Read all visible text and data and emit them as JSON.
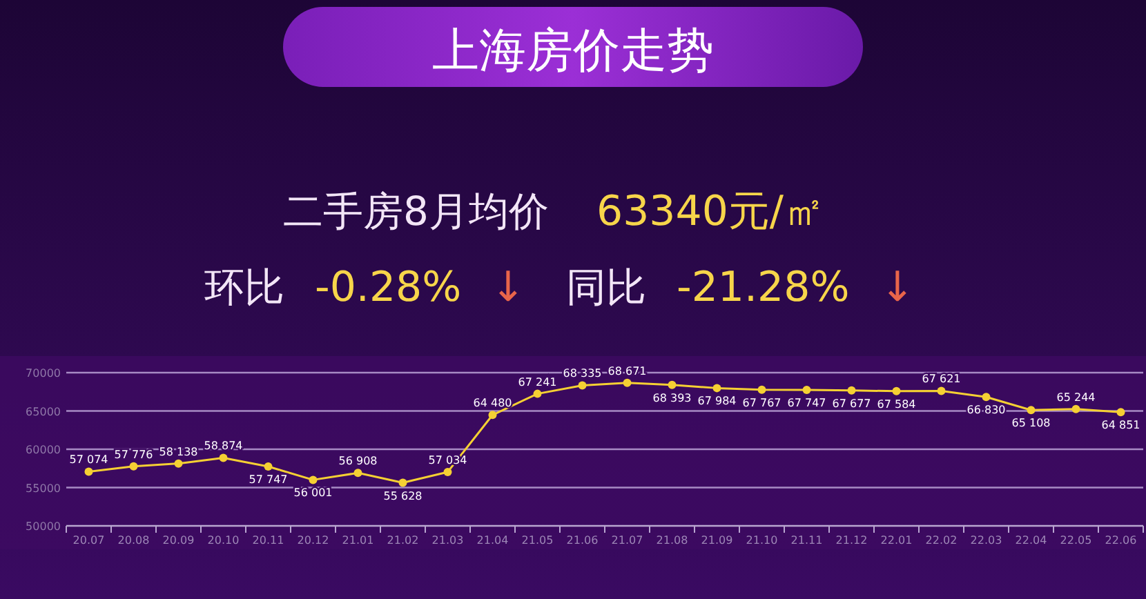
{
  "chart_data": {
    "type": "line",
    "title": "上海房价走势",
    "annotations": [
      "二手房8月均价",
      "63340元/㎡",
      "环比",
      "-0.28%",
      "↓",
      "同比",
      "-21.28%",
      "↓"
    ],
    "categories": [
      "20.07",
      "20.08",
      "20.09",
      "20.10",
      "20.11",
      "20.12",
      "21.01",
      "21.02",
      "21.03",
      "21.04",
      "21.05",
      "21.06",
      "21.07",
      "21.08",
      "21.09",
      "21.10",
      "21.11",
      "21.12",
      "22.01",
      "22.02",
      "22.03",
      "22.04",
      "22.05",
      "22.06"
    ],
    "values": [
      57074,
      57776,
      58138,
      58874,
      57747,
      56001,
      56908,
      55628,
      57034,
      64480,
      67241,
      68335,
      68671,
      68393,
      67984,
      67767,
      67747,
      67677,
      67584,
      67621,
      66830,
      65108,
      65244,
      64851
    ],
    "color": "#f5d033",
    "ylim": [
      50000,
      70000
    ],
    "yticks": [
      50000,
      55000,
      60000,
      65000,
      70000
    ],
    "grid": "y",
    "marker": "circle",
    "data_labels": true
  }
}
